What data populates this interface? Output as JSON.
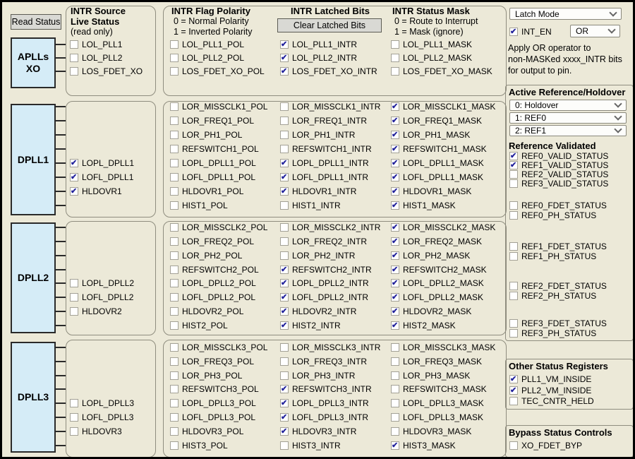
{
  "buttons": {
    "read_status": "Read Status",
    "clear_latched": "Clear Latched Bits"
  },
  "col_headers": {
    "source": {
      "l1": "INTR Source",
      "l2": "Live Status",
      "l3": "(read only)"
    },
    "polarity": {
      "l1": "INTR Flag Polarity",
      "l2": "0 = Normal Polarity",
      "l3": "1 = Inverted Polarity"
    },
    "latched": {
      "l1": "INTR Latched Bits"
    },
    "mask": {
      "l1": "INTR Status Mask",
      "l2": "0 = Route to Interrupt",
      "l3": "1 = Mask (ignore)"
    }
  },
  "colors": {
    "accent_check": "#22229b",
    "block_fill": "#d5ecf7",
    "background": "#ece9d8"
  },
  "groups": [
    {
      "block_label": "APLLs XO",
      "rows": [
        {
          "live": {
            "label": "LOL_PLL1",
            "checked": false
          },
          "pol": {
            "label": "LOL_PLL1_POL",
            "checked": false
          },
          "intr": {
            "label": "LOL_PLL1_INTR",
            "checked": true
          },
          "mask": {
            "label": "LOL_PLL1_MASK",
            "checked": false
          }
        },
        {
          "live": {
            "label": "LOL_PLL2",
            "checked": false
          },
          "pol": {
            "label": "LOL_PLL2_POL",
            "checked": false
          },
          "intr": {
            "label": "LOL_PLL2_INTR",
            "checked": true
          },
          "mask": {
            "label": "LOL_PLL2_MASK",
            "checked": false
          }
        },
        {
          "live": {
            "label": "LOS_FDET_XO",
            "checked": false
          },
          "pol": {
            "label": "LOS_FDET_XO_POL",
            "checked": false
          },
          "intr": {
            "label": "LOS_FDET_XO_INTR",
            "checked": true
          },
          "mask": {
            "label": "LOS_FDET_XO_MASK",
            "checked": false
          }
        }
      ]
    },
    {
      "block_label": "DPLL1",
      "rows": [
        {
          "live": null,
          "pol": {
            "label": "LOR_MISSCLK1_POL",
            "checked": false
          },
          "intr": {
            "label": "LOR_MISSCLK1_INTR",
            "checked": false
          },
          "mask": {
            "label": "LOR_MISSCLK1_MASK",
            "checked": true
          }
        },
        {
          "live": null,
          "pol": {
            "label": "LOR_FREQ1_POL",
            "checked": false
          },
          "intr": {
            "label": "LOR_FREQ1_INTR",
            "checked": false
          },
          "mask": {
            "label": "LOR_FREQ1_MASK",
            "checked": true
          }
        },
        {
          "live": null,
          "pol": {
            "label": "LOR_PH1_POL",
            "checked": false
          },
          "intr": {
            "label": "LOR_PH1_INTR",
            "checked": false
          },
          "mask": {
            "label": "LOR_PH1_MASK",
            "checked": true
          }
        },
        {
          "live": null,
          "pol": {
            "label": "REFSWITCH1_POL",
            "checked": false
          },
          "intr": {
            "label": "REFSWITCH1_INTR",
            "checked": false
          },
          "mask": {
            "label": "REFSWITCH1_MASK",
            "checked": true
          }
        },
        {
          "live": {
            "label": "LOPL_DPLL1",
            "checked": true
          },
          "pol": {
            "label": "LOPL_DPLL1_POL",
            "checked": false
          },
          "intr": {
            "label": "LOPL_DPLL1_INTR",
            "checked": true
          },
          "mask": {
            "label": "LOPL_DPLL1_MASK",
            "checked": true
          }
        },
        {
          "live": {
            "label": "LOFL_DPLL1",
            "checked": true
          },
          "pol": {
            "label": "LOFL_DPLL1_POL",
            "checked": false
          },
          "intr": {
            "label": "LOFL_DPLL1_INTR",
            "checked": true
          },
          "mask": {
            "label": "LOFL_DPLL1_MASK",
            "checked": true
          }
        },
        {
          "live": {
            "label": "HLDOVR1",
            "checked": true
          },
          "pol": {
            "label": "HLDOVR1_POL",
            "checked": false
          },
          "intr": {
            "label": "HLDOVR1_INTR",
            "checked": true
          },
          "mask": {
            "label": "HLDOVR1_MASK",
            "checked": true
          }
        },
        {
          "live": null,
          "pol": {
            "label": "HIST1_POL",
            "checked": false
          },
          "intr": {
            "label": "HIST1_INTR",
            "checked": false
          },
          "mask": {
            "label": "HIST1_MASK",
            "checked": true
          }
        }
      ]
    },
    {
      "block_label": "DPLL2",
      "rows": [
        {
          "live": null,
          "pol": {
            "label": "LOR_MISSCLK2_POL",
            "checked": false
          },
          "intr": {
            "label": "LOR_MISSCLK2_INTR",
            "checked": false
          },
          "mask": {
            "label": "LOR_MISSCLK2_MASK",
            "checked": true
          }
        },
        {
          "live": null,
          "pol": {
            "label": "LOR_FREQ2_POL",
            "checked": false
          },
          "intr": {
            "label": "LOR_FREQ2_INTR",
            "checked": false
          },
          "mask": {
            "label": "LOR_FREQ2_MASK",
            "checked": true
          }
        },
        {
          "live": null,
          "pol": {
            "label": "LOR_PH2_POL",
            "checked": false
          },
          "intr": {
            "label": "LOR_PH2_INTR",
            "checked": false
          },
          "mask": {
            "label": "LOR_PH2_MASK",
            "checked": true
          }
        },
        {
          "live": null,
          "pol": {
            "label": "REFSWITCH2_POL",
            "checked": false
          },
          "intr": {
            "label": "REFSWITCH2_INTR",
            "checked": true
          },
          "mask": {
            "label": "REFSWITCH2_MASK",
            "checked": true
          }
        },
        {
          "live": {
            "label": "LOPL_DPLL2",
            "checked": false
          },
          "pol": {
            "label": "LOPL_DPLL2_POL",
            "checked": false
          },
          "intr": {
            "label": "LOPL_DPLL2_INTR",
            "checked": true
          },
          "mask": {
            "label": "LOPL_DPLL2_MASK",
            "checked": true
          }
        },
        {
          "live": {
            "label": "LOFL_DPLL2",
            "checked": false
          },
          "pol": {
            "label": "LOFL_DPLL2_POL",
            "checked": false
          },
          "intr": {
            "label": "LOFL_DPLL2_INTR",
            "checked": true
          },
          "mask": {
            "label": "LOFL_DPLL2_MASK",
            "checked": true
          }
        },
        {
          "live": {
            "label": "HLDOVR2",
            "checked": false
          },
          "pol": {
            "label": "HLDOVR2_POL",
            "checked": false
          },
          "intr": {
            "label": "HLDOVR2_INTR",
            "checked": true
          },
          "mask": {
            "label": "HLDOVR2_MASK",
            "checked": true
          }
        },
        {
          "live": null,
          "pol": {
            "label": "HIST2_POL",
            "checked": false
          },
          "intr": {
            "label": "HIST2_INTR",
            "checked": true
          },
          "mask": {
            "label": "HIST2_MASK",
            "checked": true
          }
        }
      ]
    },
    {
      "block_label": "DPLL3",
      "rows": [
        {
          "live": null,
          "pol": {
            "label": "LOR_MISSCLK3_POL",
            "checked": false
          },
          "intr": {
            "label": "LOR_MISSCLK3_INTR",
            "checked": false
          },
          "mask": {
            "label": "LOR_MISSCLK3_MASK",
            "checked": false
          }
        },
        {
          "live": null,
          "pol": {
            "label": "LOR_FREQ3_POL",
            "checked": false
          },
          "intr": {
            "label": "LOR_FREQ3_INTR",
            "checked": false
          },
          "mask": {
            "label": "LOR_FREQ3_MASK",
            "checked": false
          }
        },
        {
          "live": null,
          "pol": {
            "label": "LOR_PH3_POL",
            "checked": false
          },
          "intr": {
            "label": "LOR_PH3_INTR",
            "checked": false
          },
          "mask": {
            "label": "LOR_PH3_MASK",
            "checked": false
          }
        },
        {
          "live": null,
          "pol": {
            "label": "REFSWITCH3_POL",
            "checked": false
          },
          "intr": {
            "label": "REFSWITCH3_INTR",
            "checked": true
          },
          "mask": {
            "label": "REFSWITCH3_MASK",
            "checked": false
          }
        },
        {
          "live": {
            "label": "LOPL_DPLL3",
            "checked": false
          },
          "pol": {
            "label": "LOPL_DPLL3_POL",
            "checked": false
          },
          "intr": {
            "label": "LOPL_DPLL3_INTR",
            "checked": true
          },
          "mask": {
            "label": "LOPL_DPLL3_MASK",
            "checked": false
          }
        },
        {
          "live": {
            "label": "LOFL_DPLL3",
            "checked": false
          },
          "pol": {
            "label": "LOFL_DPLL3_POL",
            "checked": false
          },
          "intr": {
            "label": "LOFL_DPLL3_INTR",
            "checked": true
          },
          "mask": {
            "label": "LOFL_DPLL3_MASK",
            "checked": false
          }
        },
        {
          "live": {
            "label": "HLDOVR3",
            "checked": false
          },
          "pol": {
            "label": "HLDOVR3_POL",
            "checked": false
          },
          "intr": {
            "label": "HLDOVR3_INTR",
            "checked": true
          },
          "mask": {
            "label": "HLDOVR3_MASK",
            "checked": false
          }
        },
        {
          "live": null,
          "pol": {
            "label": "HIST3_POL",
            "checked": false
          },
          "intr": {
            "label": "HIST3_INTR",
            "checked": false
          },
          "mask": {
            "label": "HIST3_MASK",
            "checked": true
          }
        }
      ]
    }
  ],
  "right_panel": {
    "latch_mode_select": "Latch Mode",
    "int_en": {
      "label": "INT_EN",
      "checked": true
    },
    "or_select": "OR",
    "note": [
      "Apply OR operator to",
      "non-MASKed xxxx_INTR bits",
      "for output to pin."
    ],
    "active_ref": {
      "title": "Active Reference/Holdover",
      "selects": [
        "0: Holdover",
        "1: REF0",
        "2: REF1"
      ],
      "validated_title": "Reference Validated",
      "validated": [
        {
          "label": "REF0_VALID_STATUS",
          "checked": true
        },
        {
          "label": "REF1_VALID_STATUS",
          "checked": true
        },
        {
          "label": "REF2_VALID_STATUS",
          "checked": false
        },
        {
          "label": "REF3_VALID_STATUS",
          "checked": false
        }
      ],
      "status_bits": [
        {
          "label": "REF0_FDET_STATUS",
          "checked": false
        },
        {
          "label": "REF0_PH_STATUS",
          "checked": false
        },
        {
          "label": "REF1_FDET_STATUS",
          "checked": false
        },
        {
          "label": "REF1_PH_STATUS",
          "checked": false
        },
        {
          "label": "REF2_FDET_STATUS",
          "checked": false
        },
        {
          "label": "REF2_PH_STATUS",
          "checked": false
        },
        {
          "label": "REF3_FDET_STATUS",
          "checked": false
        },
        {
          "label": "REF3_PH_STATUS",
          "checked": false
        }
      ]
    },
    "other_status": {
      "title": "Other Status Registers",
      "items": [
        {
          "label": "PLL1_VM_INSIDE",
          "checked": true
        },
        {
          "label": "PLL2_VM_INSIDE",
          "checked": true
        },
        {
          "label": "TEC_CNTR_HELD",
          "checked": false
        }
      ]
    },
    "bypass": {
      "title": "Bypass Status Controls",
      "items": [
        {
          "label": "XO_FDET_BYP",
          "checked": false
        }
      ]
    }
  }
}
